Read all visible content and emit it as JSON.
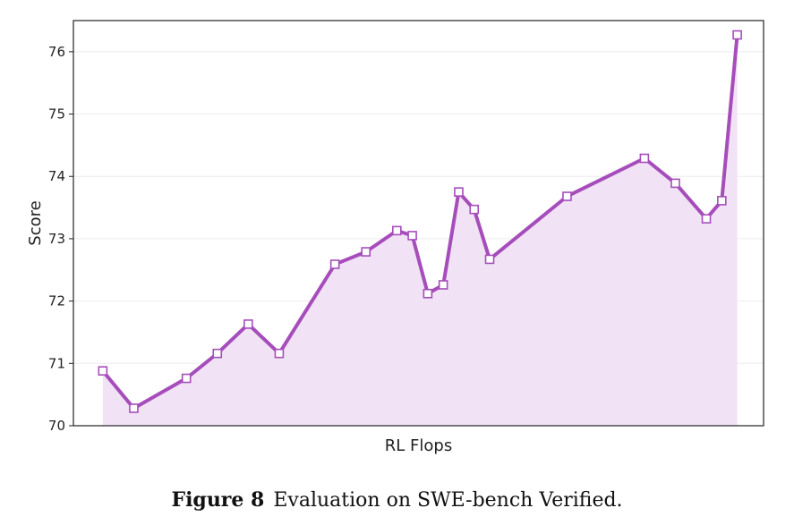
{
  "chart_data": {
    "type": "area",
    "title": "",
    "xlabel": "RL Flops",
    "ylabel": "Score",
    "ylim": [
      70,
      76.5
    ],
    "yticks": [
      70,
      71,
      72,
      73,
      74,
      75,
      76
    ],
    "grid": true,
    "x": [
      1,
      2,
      3.7,
      4.7,
      5.7,
      6.7,
      8.5,
      9.5,
      10.5,
      11,
      11.5,
      12,
      12.5,
      13,
      13.5,
      16,
      18.5,
      19.5,
      20.5,
      21,
      21.5
    ],
    "series": [
      {
        "values": [
          70.88,
          70.28,
          70.76,
          71.16,
          71.63,
          71.16,
          72.59,
          72.79,
          73.13,
          73.05,
          72.12,
          72.26,
          73.75,
          73.47,
          72.67,
          73.68,
          74.29,
          73.89,
          73.32,
          73.61,
          76.27
        ],
        "color": "#a64dbb",
        "fill": "#f1e3f5"
      }
    ]
  },
  "caption": {
    "label": "Figure 8",
    "text": "Evaluation on SWE-bench Verified."
  }
}
